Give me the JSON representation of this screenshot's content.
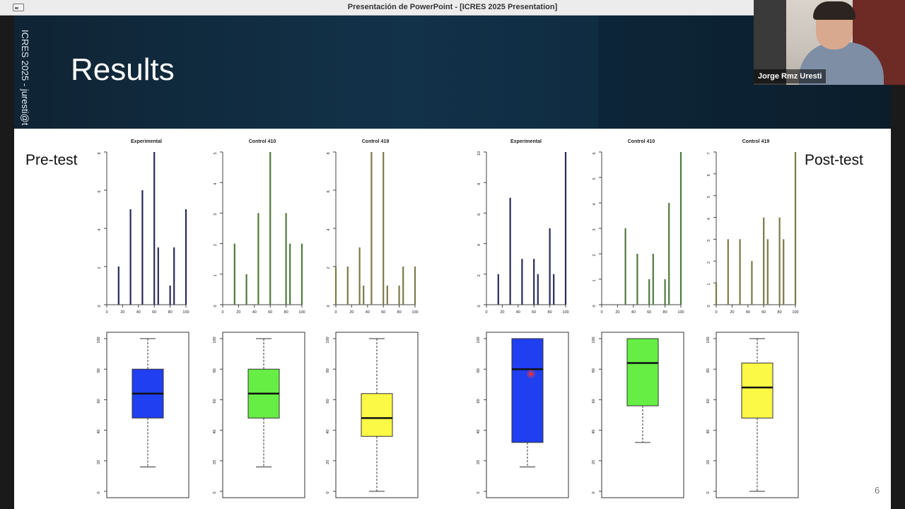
{
  "window": {
    "title": "Presentación de PowerPoint - [ICRES 2025 Presentation]"
  },
  "slide": {
    "vertical_text": "ICRES 2025 - juresti@t",
    "title": "Results",
    "pre_label": "Pre-test",
    "post_label": "Post-test",
    "page_number": "6"
  },
  "webcam": {
    "participant_name": "Jorge Rmz Uresti"
  },
  "chart_data": [
    {
      "type": "bar",
      "title": "Experimental",
      "group": "Pre-test",
      "color": "#2a2a5a",
      "x": [
        15,
        30,
        45,
        60,
        65,
        80,
        85,
        100
      ],
      "values": [
        2,
        5,
        6,
        8,
        3,
        1,
        3,
        5
      ],
      "xlim": [
        0,
        100
      ],
      "ylim": [
        0,
        8
      ],
      "xticks": [
        0,
        20,
        40,
        60,
        80,
        100
      ],
      "yticks": [
        0,
        2,
        4,
        6,
        8
      ]
    },
    {
      "type": "bar",
      "title": "Control 410",
      "group": "Pre-test",
      "color": "#4f7a3c",
      "x": [
        15,
        30,
        45,
        60,
        80,
        85,
        100
      ],
      "values": [
        2,
        1,
        3,
        5,
        3,
        2,
        2
      ],
      "xlim": [
        0,
        100
      ],
      "ylim": [
        0,
        5
      ],
      "xticks": [
        0,
        20,
        40,
        60,
        80,
        100
      ],
      "yticks": [
        0,
        1,
        2,
        3,
        4,
        5
      ]
    },
    {
      "type": "bar",
      "title": "Control 419",
      "group": "Pre-test",
      "color": "#7a7a4a",
      "x": [
        0,
        15,
        30,
        35,
        45,
        60,
        65,
        80,
        85,
        100
      ],
      "values": [
        2,
        2,
        3,
        1,
        8,
        8,
        1,
        1,
        2,
        2
      ],
      "xlim": [
        0,
        100
      ],
      "ylim": [
        0,
        8
      ],
      "xticks": [
        0,
        20,
        40,
        60,
        80,
        100
      ],
      "yticks": [
        0,
        2,
        4,
        6,
        8
      ]
    },
    {
      "type": "bar",
      "title": "Experimental",
      "group": "Post-test",
      "color": "#2a2a5a",
      "x": [
        15,
        30,
        45,
        60,
        65,
        80,
        85,
        100
      ],
      "values": [
        2,
        7,
        3,
        3,
        2,
        5,
        2,
        10
      ],
      "xlim": [
        0,
        100
      ],
      "ylim": [
        0,
        10
      ],
      "xticks": [
        0,
        20,
        40,
        60,
        80,
        100
      ],
      "yticks": [
        0,
        2,
        4,
        6,
        8,
        10
      ]
    },
    {
      "type": "bar",
      "title": "Control 410",
      "group": "Post-test",
      "color": "#4f7a3c",
      "x": [
        30,
        45,
        60,
        65,
        80,
        85,
        100
      ],
      "values": [
        3,
        2,
        1,
        2,
        1,
        4,
        6
      ],
      "xlim": [
        0,
        100
      ],
      "ylim": [
        0,
        6
      ],
      "xticks": [
        0,
        20,
        40,
        60,
        80,
        100
      ],
      "yticks": [
        0,
        1,
        2,
        3,
        4,
        5,
        6
      ]
    },
    {
      "type": "bar",
      "title": "Control 419",
      "group": "Post-test",
      "color": "#7a7a4a",
      "x": [
        0,
        15,
        30,
        45,
        60,
        65,
        80,
        85,
        100
      ],
      "values": [
        1,
        3,
        3,
        2,
        4,
        3,
        4,
        3,
        7
      ],
      "xlim": [
        0,
        100
      ],
      "ylim": [
        0,
        7
      ],
      "xticks": [
        0,
        20,
        40,
        60,
        80,
        100
      ],
      "yticks": [
        0,
        1,
        2,
        3,
        4,
        5,
        6,
        7
      ]
    },
    {
      "type": "box",
      "group": "Pre-test",
      "fill": "#1f3ff0",
      "min": 16,
      "q1": 48,
      "median": 64,
      "q3": 80,
      "max": 100,
      "ylim": [
        0,
        100
      ],
      "yticks": [
        0,
        20,
        40,
        60,
        80,
        100
      ]
    },
    {
      "type": "box",
      "group": "Pre-test",
      "fill": "#66ee44",
      "min": 16,
      "q1": 48,
      "median": 64,
      "q3": 80,
      "max": 100,
      "ylim": [
        0,
        100
      ],
      "yticks": [
        0,
        20,
        40,
        60,
        80,
        100
      ]
    },
    {
      "type": "box",
      "group": "Pre-test",
      "fill": "#fbf846",
      "min": 0,
      "q1": 36,
      "median": 48,
      "q3": 64,
      "max": 100,
      "ylim": [
        0,
        100
      ],
      "yticks": [
        0,
        20,
        40,
        60,
        80,
        100
      ]
    },
    {
      "type": "box",
      "group": "Post-test",
      "fill": "#1f3ff0",
      "min": 16,
      "q1": 32,
      "median": 80,
      "q3": 100,
      "max": 100,
      "ylim": [
        0,
        100
      ],
      "yticks": [
        0,
        20,
        40,
        60,
        80,
        100
      ]
    },
    {
      "type": "box",
      "group": "Post-test",
      "fill": "#66ee44",
      "min": 32,
      "q1": 56,
      "median": 84,
      "q3": 100,
      "max": 100,
      "ylim": [
        0,
        100
      ],
      "yticks": [
        0,
        20,
        40,
        60,
        80,
        100
      ]
    },
    {
      "type": "box",
      "group": "Post-test",
      "fill": "#fbf846",
      "min": 0,
      "q1": 48,
      "median": 68,
      "q3": 84,
      "max": 100,
      "ylim": [
        0,
        100
      ],
      "yticks": [
        0,
        20,
        40,
        60,
        80,
        100
      ]
    }
  ]
}
